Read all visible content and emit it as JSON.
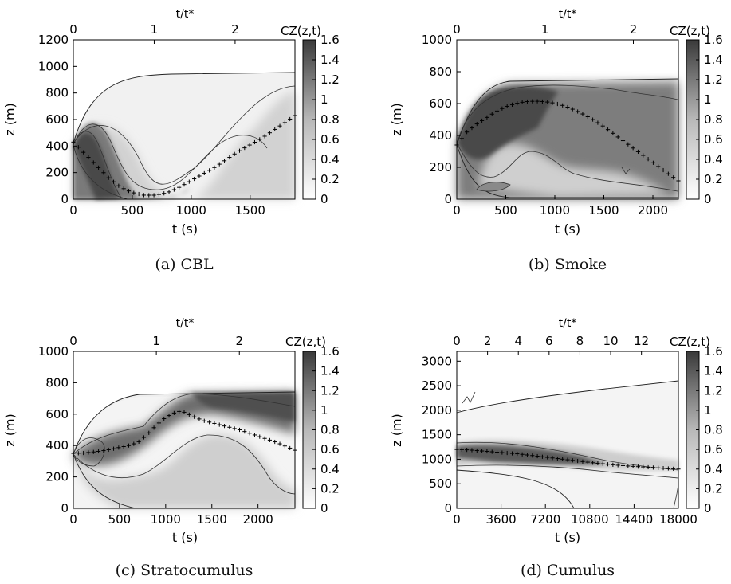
{
  "figure": {
    "panels": [
      {
        "caption": "(a) CBL",
        "top_label": "t/t*",
        "xlabel": "t (s)",
        "ylabel": "z (m)",
        "colorbar_label": "CZ(z,t)"
      },
      {
        "caption": "(b) Smoke",
        "top_label": "t/t*",
        "xlabel": "t (s)",
        "ylabel": "z (m)",
        "colorbar_label": "CZ(z,t)"
      },
      {
        "caption": "(c) Stratocumulus",
        "top_label": "t/t*",
        "xlabel": "t (s)",
        "ylabel": "z (m)",
        "colorbar_label": "CZ(z,t)"
      },
      {
        "caption": "(d) Cumulus",
        "top_label": "t/t*",
        "xlabel": "t (s)",
        "ylabel": "z (m)",
        "colorbar_label": "CZ(z,t)"
      }
    ]
  },
  "chart_data": [
    {
      "type": "heatmap",
      "title": "(a) CBL",
      "xlabel": "t (s)",
      "ylabel": "z (m)",
      "x2label": "t/t*",
      "xlim": [
        0,
        1880
      ],
      "ylim": [
        0,
        1200
      ],
      "xticks": [
        0,
        500,
        1000,
        1500
      ],
      "yticks": [
        0,
        200,
        400,
        600,
        800,
        1000,
        1200
      ],
      "x2lim": [
        0,
        2.74
      ],
      "x2ticks": [
        0,
        1,
        2
      ],
      "colorbar": {
        "label": "CZ(z,t)",
        "range": [
          0,
          1.6
        ],
        "ticks": [
          0,
          0.2,
          0.4,
          0.6,
          0.8,
          1,
          1.2,
          1.4,
          1.6
        ]
      },
      "centroid": {
        "marker": "+",
        "t": [
          0,
          100,
          200,
          300,
          400,
          500,
          600,
          700,
          800,
          900,
          1000,
          1100,
          1200,
          1300,
          1400,
          1500,
          1600,
          1700,
          1800,
          1880
        ],
        "z": [
          430,
          340,
          250,
          160,
          90,
          50,
          30,
          30,
          50,
          90,
          140,
          190,
          240,
          300,
          360,
          410,
          460,
          520,
          580,
          630
        ]
      },
      "plume_outer_top": {
        "t": [
          0,
          100,
          200,
          300,
          400,
          500,
          600,
          700,
          800,
          900,
          1000,
          1880
        ],
        "z": [
          430,
          630,
          760,
          860,
          930,
          965,
          970,
          975,
          980,
          982,
          985,
          990
        ]
      }
    },
    {
      "type": "heatmap",
      "title": "(b) Smoke",
      "xlabel": "t (s)",
      "ylabel": "z (m)",
      "x2label": "t/t*",
      "xlim": [
        0,
        2260
      ],
      "ylim": [
        0,
        1000
      ],
      "xticks": [
        0,
        500,
        1000,
        1500,
        2000
      ],
      "yticks": [
        0,
        200,
        400,
        600,
        800,
        1000
      ],
      "x2lim": [
        0,
        2.51
      ],
      "x2ticks": [
        0,
        1,
        2
      ],
      "colorbar": {
        "label": "CZ(z,t)",
        "range": [
          0,
          1.6
        ],
        "ticks": [
          0,
          0.2,
          0.4,
          0.6,
          0.8,
          1,
          1.2,
          1.4,
          1.6
        ]
      },
      "centroid": {
        "marker": "+",
        "t": [
          0,
          100,
          200,
          300,
          400,
          500,
          600,
          700,
          800,
          900,
          1000,
          1100,
          1200,
          1300,
          1400,
          1500,
          1600,
          1700,
          1800,
          1900,
          2000,
          2100,
          2200,
          2260
        ],
        "z": [
          340,
          420,
          470,
          510,
          550,
          580,
          600,
          612,
          615,
          612,
          602,
          585,
          560,
          530,
          495,
          455,
          410,
          365,
          320,
          275,
          230,
          185,
          140,
          115
        ]
      },
      "plume_outer_top": {
        "t": [
          0,
          100,
          200,
          300,
          400,
          500,
          2260
        ],
        "z": [
          340,
          540,
          640,
          700,
          730,
          745,
          755
        ]
      }
    },
    {
      "type": "heatmap",
      "title": "(c) Stratocumulus",
      "xlabel": "t (s)",
      "ylabel": "z (m)",
      "x2label": "t/t*",
      "xlim": [
        0,
        2400
      ],
      "ylim": [
        0,
        1000
      ],
      "xticks": [
        0,
        500,
        1000,
        1500,
        2000
      ],
      "yticks": [
        0,
        200,
        400,
        600,
        800,
        1000
      ],
      "x2lim": [
        0,
        2.67
      ],
      "x2ticks": [
        0,
        1,
        2
      ],
      "colorbar": {
        "label": "CZ(z,t)",
        "range": [
          0,
          1.6
        ],
        "ticks": [
          0,
          0.2,
          0.4,
          0.6,
          0.8,
          1,
          1.2,
          1.4,
          1.6
        ]
      },
      "centroid": {
        "marker": "+",
        "t": [
          0,
          100,
          200,
          300,
          400,
          500,
          600,
          700,
          800,
          900,
          1000,
          1100,
          1150,
          1200,
          1300,
          1400,
          1500,
          1600,
          1700,
          1800,
          1900,
          2000,
          2100,
          2200,
          2300,
          2400
        ],
        "z": [
          350,
          352,
          358,
          365,
          375,
          388,
          400,
          420,
          470,
          530,
          580,
          610,
          618,
          612,
          585,
          560,
          545,
          530,
          515,
          500,
          480,
          460,
          440,
          420,
          395,
          370
        ]
      },
      "plume_outer_top": {
        "t": [
          0,
          100,
          200,
          300,
          400,
          500,
          600,
          2400
        ],
        "z": [
          350,
          500,
          590,
          660,
          710,
          740,
          755,
          765
        ]
      }
    },
    {
      "type": "heatmap",
      "title": "(d) Cumulus",
      "xlabel": "t (s)",
      "ylabel": "z (m)",
      "x2label": "t/t*",
      "xlim": [
        0,
        18000
      ],
      "ylim": [
        0,
        3200
      ],
      "xticks": [
        0,
        3600,
        7200,
        10800,
        14400,
        18000
      ],
      "yticks": [
        0,
        500,
        1000,
        1500,
        2000,
        2500,
        3000
      ],
      "x2lim": [
        0,
        14.4
      ],
      "x2ticks": [
        0,
        2,
        4,
        6,
        8,
        10,
        12
      ],
      "colorbar": {
        "label": "CZ(z,t)",
        "range": [
          0,
          1.6
        ],
        "ticks": [
          0,
          0.2,
          0.4,
          0.6,
          0.8,
          1,
          1.2,
          1.4,
          1.6
        ]
      },
      "centroid": {
        "marker": "+",
        "t": [
          0,
          1000,
          2000,
          3000,
          4000,
          5000,
          6000,
          7000,
          8000,
          9000,
          10000,
          11000,
          12000,
          13000,
          14000,
          15000,
          16000,
          17000,
          18000
        ],
        "z": [
          1200,
          1190,
          1170,
          1150,
          1130,
          1110,
          1080,
          1050,
          1020,
          990,
          960,
          930,
          905,
          880,
          860,
          845,
          830,
          815,
          800
        ]
      },
      "plume_outer_top": {
        "t": [
          0,
          3600,
          7200,
          10800,
          14400,
          18000
        ],
        "z": [
          1400,
          1900,
          2100,
          2280,
          2450,
          2650
        ]
      }
    }
  ]
}
